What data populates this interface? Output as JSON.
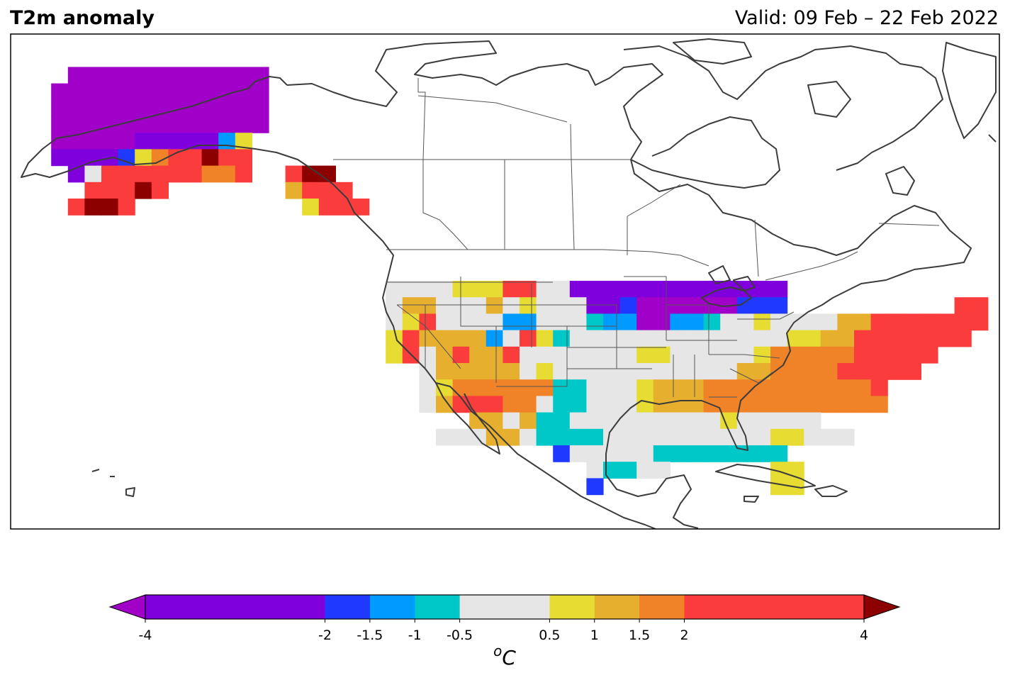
{
  "header": {
    "title": "T2m anomaly",
    "valid": "Valid: 09 Feb – 22 Feb 2022"
  },
  "colorbar": {
    "unit_base": "o",
    "unit_letter": "C",
    "boundaries": [
      -4,
      -2,
      -1.5,
      -1,
      -0.5,
      0.5,
      1,
      1.5,
      2,
      4
    ],
    "tick_labels": [
      "-4",
      "-2",
      "-1.5",
      "-1",
      "-0.5",
      "0.5",
      "1",
      "1.5",
      "2",
      "4"
    ],
    "colors": [
      "#7f00dd",
      "#2039ff",
      "#009bff",
      "#00c8c8",
      "#e6e6e6",
      "#e6dc32",
      "#e6af2d",
      "#f08228",
      "#fa3c3c"
    ],
    "under_color": "#a000c8",
    "over_color": "#8c0000"
  },
  "legend_colors": {
    "a": "#a000c8",
    "b": "#7f00dd",
    "c": "#2039ff",
    "d": "#009bff",
    "e": "#00c8c8",
    "f": "#e6e6e6",
    "g": "#e6dc32",
    "h": "#e6af2d",
    "i": "#f08228",
    "j": "#fa3c3c",
    "k": "#8c0000"
  },
  "grid_rows": [
    "..........................................................",
    "..........................................................",
    "...aaaaaaaaaaaa...........................................",
    "..aaaaaaaaaaaaa...........................................",
    "..aaaaaaaaaaaaa...........................................",
    "..aaaaaaaaaaaaa...........................................",
    "..aaaaabbbbbdg............................................",
    "..bbbbcgijjkjj............................................",
    "...bfjjjjjjiij..jkk.......................................",
    "....jjjkj.......hjjj......................................",
    "...jkkj..........gjjj.....................................",
    "..........................................................",
    "..........................................................",
    "..........................................................",
    "..........................................................",
    "......................ffffgggjjffbbbbbbbbbbbbb............",
    "......................fhhfffhfgfffbbcaaaaaaccc..........jj",
    "......................fgjffffddfffeddaaddeffgffffhhjjjjjjj",
    "......................gjhhhhdfjgefffffffffffffgghhjjjjjjj.",
    "......................gjfhjhhjfffffffggfffffgiiiiijjjjj...",
    "........................fhhhhhfgfffffffffffhhiiiijjjjj....",
    "........................fgiiiiiieefffghhhiiiiiiiiiij......",
    "........................fhjjjiifeefffghhhiiiiiiiiiii......",
    "...........................hhfheefffffffffgfffff..........",
    ".........................fffhhfeeeeffffffffffggfff........",
    "................................cfffffeeeeeeee............",
    "..................................feeff......gg...........",
    "..................................c..........gg..........."
  ],
  "tiles": {
    "x0": 25,
    "y0": 48,
    "dx": 23.6,
    "dy": 23.2
  },
  "map_style": {
    "coast_color": "#3c3c3c",
    "border_color": "#555555"
  }
}
